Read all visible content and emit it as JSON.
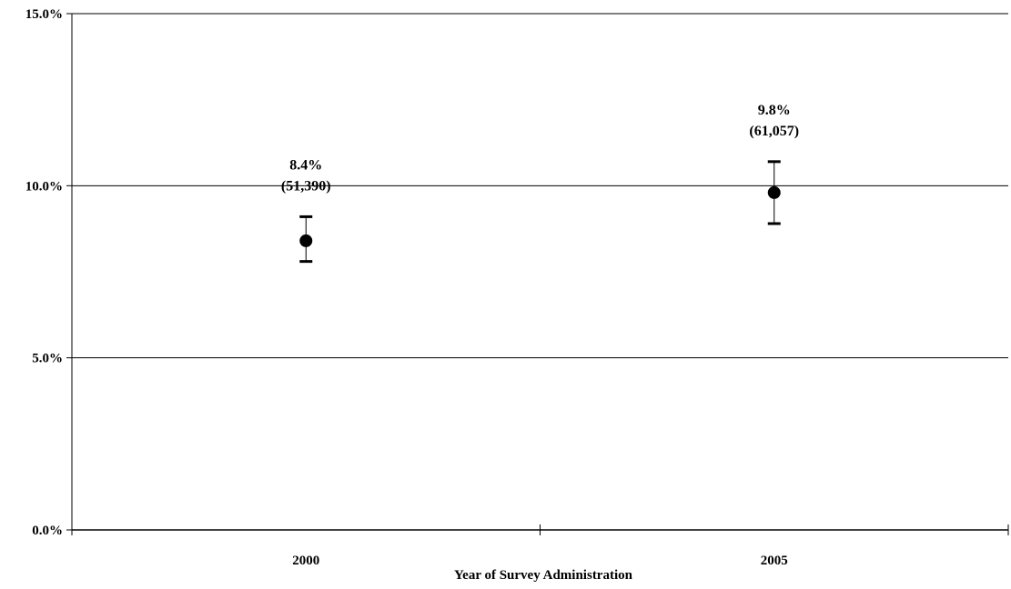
{
  "chart_data": {
    "type": "scatter",
    "title": "",
    "xlabel": "Year of Survey Administration",
    "ylabel": "",
    "categories": [
      "2000",
      "2005"
    ],
    "ylim": [
      0,
      15
    ],
    "yticks": [
      0,
      5,
      10,
      15
    ],
    "ytick_labels": [
      "0.0%",
      "5.0%",
      "10.0%",
      "15.0%"
    ],
    "grid": "horizontal",
    "legend": "none",
    "series": [
      {
        "values": [
          8.4,
          9.8
        ],
        "error_low": [
          7.8,
          8.9
        ],
        "error_high": [
          9.1,
          10.7
        ],
        "value_labels": [
          "8.4%",
          "9.8%"
        ],
        "count_labels": [
          "(51,390)",
          "(61,057)"
        ]
      }
    ],
    "colors": {
      "marker": "#000000",
      "grid": "#000000",
      "background": "#ffffff"
    }
  }
}
